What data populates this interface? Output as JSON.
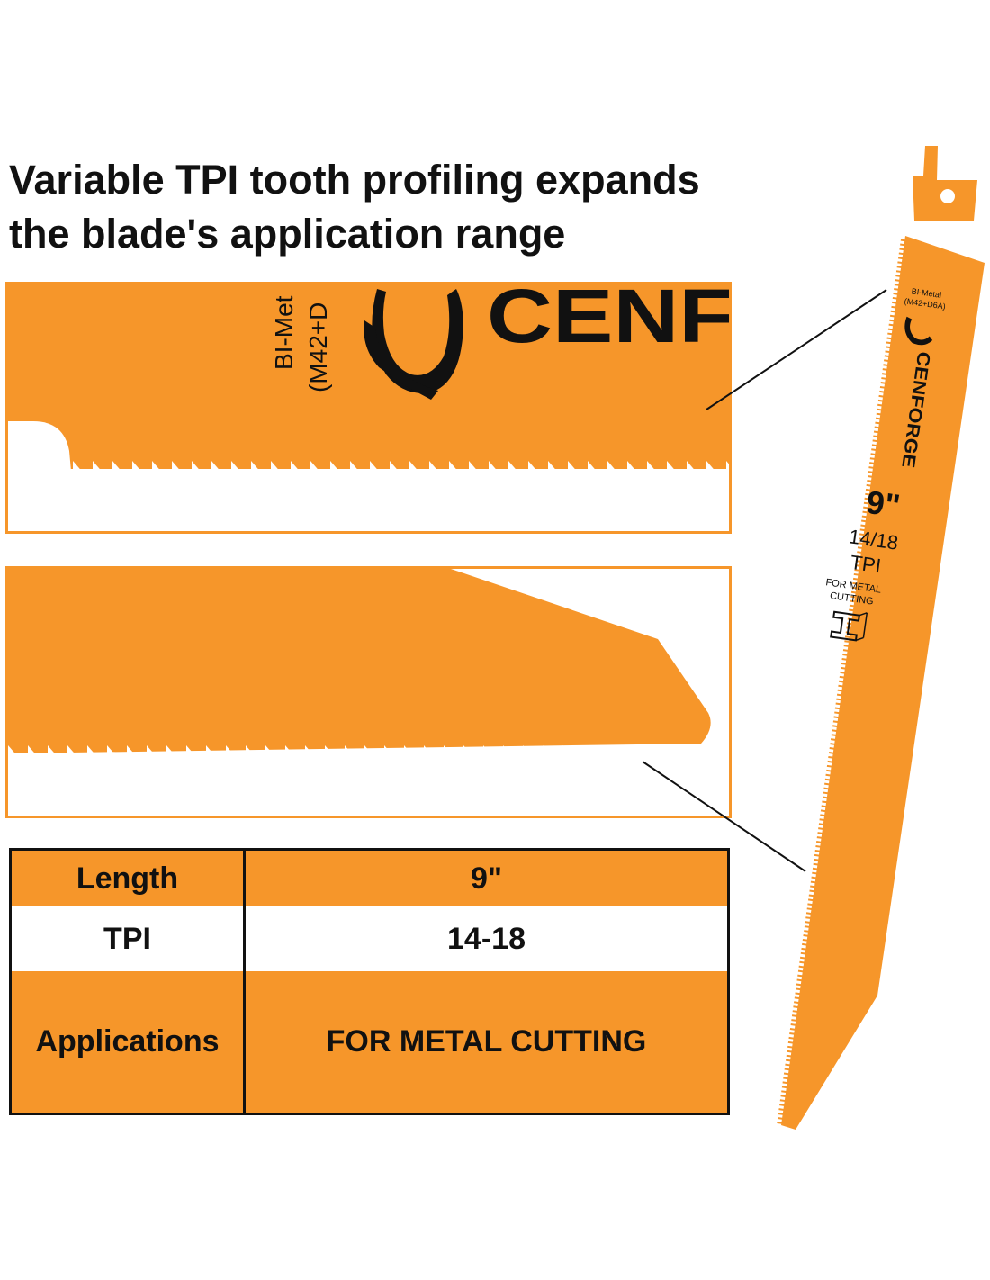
{
  "headline": {
    "line1": "Variable TPI tooth profiling expands",
    "line2": "the blade's application range"
  },
  "zoom_top": {
    "material_line1": "BI-Met",
    "material_line2": "(M42+D",
    "brand_fragment": "CENF"
  },
  "blade": {
    "material_line1": "BI-Metal",
    "material_line2": "(M42+D6A)",
    "brand": "CENFORGE",
    "length": "9\"",
    "tpi_value": "14/18",
    "tpi_unit": "TPI",
    "use_line1": "FOR METAL",
    "use_line2": "CUTTING"
  },
  "specs": {
    "rows": [
      {
        "label": "Length",
        "value": "9\""
      },
      {
        "label": "TPI",
        "value": "14-18"
      },
      {
        "label": "Applications",
        "value": "FOR METAL CUTTING"
      }
    ]
  },
  "colors": {
    "orange": "#f6962a",
    "black": "#111111",
    "white": "#ffffff"
  },
  "icons": {
    "logo": "crocodile-logo-icon",
    "metal": "i-beam-icon"
  }
}
